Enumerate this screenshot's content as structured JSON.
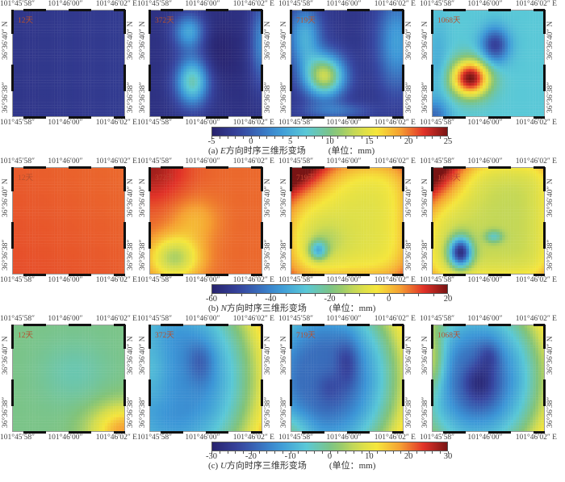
{
  "chart_data": [
    {
      "type": "heatmap",
      "component": "E",
      "title": "(a) E方向时序三维形变场",
      "unit": "(单位：mm)",
      "colorbar": {
        "min": -5,
        "max": 25,
        "ticks": [
          -5,
          0,
          5,
          10,
          15,
          20,
          25
        ]
      },
      "panels": [
        {
          "label": "12天",
          "description": "uniform low values ≈ -3 mm",
          "features": []
        },
        {
          "label": "372天",
          "description": "two elongated anomalies on west side (~3-8 mm), background ≈ -3 mm",
          "features": [
            {
              "x": 0.35,
              "y": 0.2,
              "rx": 0.15,
              "ry": 0.17,
              "value": 4
            },
            {
              "x": 0.38,
              "y": 0.67,
              "rx": 0.17,
              "ry": 0.25,
              "value": 8
            },
            {
              "x": 0.95,
              "y": 0.3,
              "rx": 0.1,
              "ry": 0.35,
              "value": 3
            }
          ]
        },
        {
          "label": "719天",
          "description": "anomaly lower-west ≈ 13 mm",
          "features": [
            {
              "x": 0.25,
              "y": 0.65,
              "rx": 0.2,
              "ry": 0.25,
              "value": 13
            },
            {
              "x": 0.12,
              "y": 0.25,
              "rx": 0.15,
              "ry": 0.25,
              "value": 6
            },
            {
              "x": 0.9,
              "y": 0.3,
              "rx": 0.15,
              "ry": 0.4,
              "value": 5
            }
          ]
        },
        {
          "label": "1068天",
          "description": "peak lower-west ≈ 24 mm, low center-north ≈ -2 mm",
          "features": [
            {
              "x": 0.33,
              "y": 0.65,
              "rx": 0.2,
              "ry": 0.2,
              "value": 24
            },
            {
              "x": 0.55,
              "y": 0.33,
              "rx": 0.14,
              "ry": 0.18,
              "value": -2
            }
          ]
        }
      ],
      "axes": {
        "x_ticks": [
          "101°45′58″",
          "101°46′00″",
          "101°46′02″ E"
        ],
        "y_ticks": [
          "36°36′40″ N",
          "36°36′38″"
        ]
      }
    },
    {
      "type": "heatmap",
      "component": "N",
      "title": "(b) N方向时序三维形变场",
      "unit": "(单位：mm)",
      "colorbar": {
        "min": -60,
        "max": 20,
        "ticks": [
          -60,
          -40,
          -20,
          0,
          20
        ]
      },
      "panels": [
        {
          "label": "12天",
          "description": "uniform ≈ 10 mm",
          "features": []
        },
        {
          "label": "372天",
          "description": "NW high ≈ 15 mm, SW low ≈ -15 mm",
          "features": [
            {
              "x": 0.25,
              "y": 0.8,
              "rx": 0.25,
              "ry": 0.2,
              "value": -15
            }
          ]
        },
        {
          "label": "719天",
          "description": "NW high ≈ 18 mm, SW low ≈ -35 mm",
          "features": [
            {
              "x": 0.25,
              "y": 0.78,
              "rx": 0.07,
              "ry": 0.08,
              "value": -35
            }
          ]
        },
        {
          "label": "1068天",
          "description": "NW high ≈ 18 mm, SW low ≈ -55 mm",
          "features": [
            {
              "x": 0.27,
              "y": 0.8,
              "rx": 0.1,
              "ry": 0.14,
              "value": -55
            },
            {
              "x": 0.55,
              "y": 0.65,
              "rx": 0.08,
              "ry": 0.06,
              "value": -30
            }
          ]
        }
      ],
      "axes": {
        "x_ticks": [
          "101°45′58″",
          "101°46′00″",
          "101°46′02″ E"
        ],
        "y_ticks": [
          "36°36′40″ N",
          "36°36′38″"
        ]
      }
    },
    {
      "type": "heatmap",
      "component": "U",
      "title": "(c) U方向时序三维形变场",
      "unit": "(单位：mm)",
      "colorbar": {
        "min": -30,
        "max": 30,
        "ticks": [
          -30,
          -20,
          -10,
          0,
          10,
          20,
          30
        ]
      },
      "panels": [
        {
          "label": "12天",
          "description": "≈ 0 mm, SE corner ≈ 15 mm",
          "features": []
        },
        {
          "label": "372天",
          "description": "center low ≈ -15 mm, east edge ≈ 28 mm",
          "features": []
        },
        {
          "label": "719天",
          "description": "center low ≈ -20 mm, east edge ≈ 30 mm",
          "features": []
        },
        {
          "label": "1068天",
          "description": "center low ≈ -25 mm, east edge ≈ 30 mm",
          "features": []
        }
      ],
      "axes": {
        "x_ticks": [
          "101°45′58″",
          "101°46′00″",
          "101°46′02″ E"
        ],
        "y_ticks": [
          "36°36′40″ N",
          "36°36′38″"
        ]
      }
    }
  ],
  "rows": [
    {
      "key": "E",
      "caption_prefix": "(a) ",
      "caption_axis": "E",
      "caption_suffix": "方向时序三维形变场",
      "unit": "(单位：mm)",
      "cbar_ticks": [
        "-5",
        "0",
        "5",
        "10",
        "15",
        "20",
        "25"
      ],
      "labels": [
        "12天",
        "372天",
        "719天",
        "1068天"
      ]
    },
    {
      "key": "N",
      "caption_prefix": "(b) ",
      "caption_axis": "N",
      "caption_suffix": "方向时序三维形变场",
      "unit": "(单位：mm)",
      "cbar_ticks": [
        "-60",
        "-40",
        "-20",
        "0",
        "20"
      ],
      "labels": [
        "12天",
        "372天",
        "719天",
        "1068天"
      ]
    },
    {
      "key": "U",
      "caption_prefix": "(c) ",
      "caption_axis": "U",
      "caption_suffix": "方向时序三维形变场",
      "unit": "(单位：mm)",
      "cbar_ticks": [
        "-30",
        "-20",
        "-10",
        "0",
        "10",
        "20",
        "30"
      ],
      "labels": [
        "12天",
        "372天",
        "719天",
        "1068天"
      ]
    }
  ],
  "axis_labels": {
    "lon": [
      "101°45′58″",
      "101°46′00″",
      "101°46′02″ E"
    ],
    "lat_top": "36°36′40″ N",
    "lat_bot": "36°36′38″"
  }
}
